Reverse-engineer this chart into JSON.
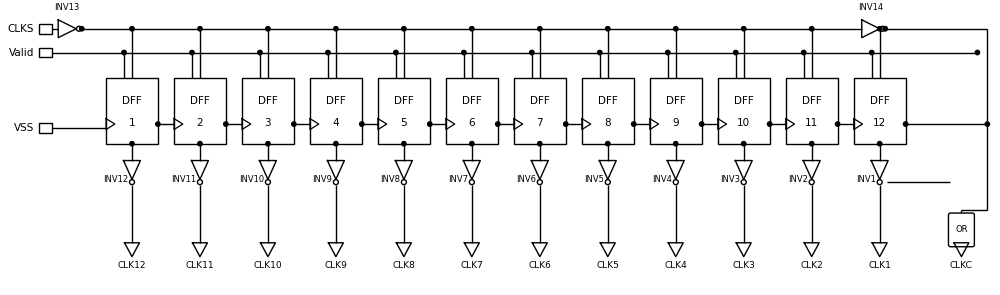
{
  "fig_width": 10.0,
  "fig_height": 2.95,
  "dpi": 100,
  "bg_color": "#ffffff",
  "line_color": "#000000",
  "lw": 1.0,
  "dff_labels": [
    "DFF\n1",
    "DFF\n2",
    "DFF\n3",
    "DFF\n4",
    "DFF\n5",
    "DFF\n6",
    "DFF\n7",
    "DFF\n8",
    "DFF\n9",
    "DFF\n10",
    "DFF\n11",
    "DFF\n12"
  ],
  "clk_labels": [
    "CLK12",
    "CLK11",
    "CLK10",
    "CLK9",
    "CLK8",
    "CLK7",
    "CLK6",
    "CLK5",
    "CLK4",
    "CLK3",
    "CLK2",
    "CLK1",
    "CLKC"
  ],
  "inv_labels": [
    "INV12",
    "INV11",
    "INV10",
    "INV9",
    "INV8",
    "INV7",
    "INV6",
    "INV5",
    "INV4",
    "INV3",
    "INV2",
    "INV1"
  ],
  "input_labels": [
    "CLKS",
    "Valid",
    "VSS"
  ],
  "fs_main": 7.5,
  "fs_small": 6.0,
  "fs_clk": 6.5
}
